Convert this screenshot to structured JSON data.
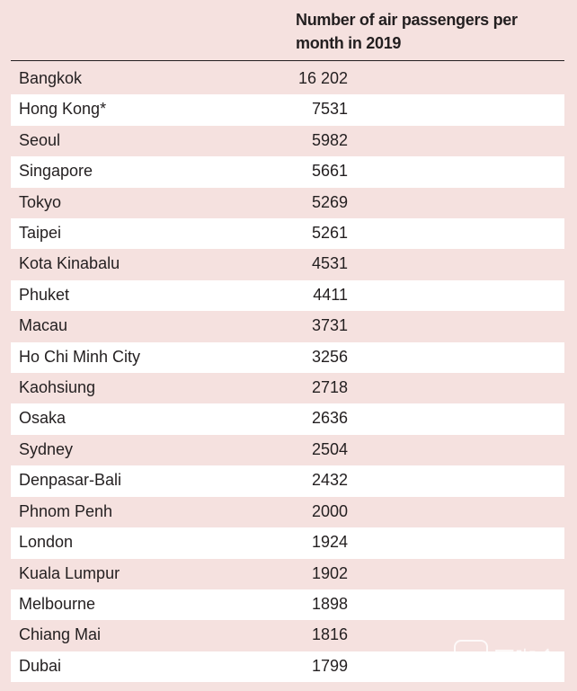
{
  "table": {
    "column_header": "Number of air passengers per month in 2019",
    "rows": [
      {
        "city": "Bangkok",
        "value": "16 202"
      },
      {
        "city": "Hong Kong*",
        "value": "7531"
      },
      {
        "city": "Seoul",
        "value": "5982"
      },
      {
        "city": "Singapore",
        "value": "5661"
      },
      {
        "city": "Tokyo",
        "value": "5269"
      },
      {
        "city": "Taipei",
        "value": "5261"
      },
      {
        "city": "Kota Kinabalu",
        "value": "4531"
      },
      {
        "city": "Phuket",
        "value": "4411"
      },
      {
        "city": "Macau",
        "value": "3731"
      },
      {
        "city": "Ho Chi Minh City",
        "value": "3256"
      },
      {
        "city": "Kaohsiung",
        "value": "2718"
      },
      {
        "city": "Osaka",
        "value": "2636"
      },
      {
        "city": "Sydney",
        "value": "2504"
      },
      {
        "city": "Denpasar-Bali",
        "value": "2432"
      },
      {
        "city": "Phnom Penh",
        "value": "2000"
      },
      {
        "city": "London",
        "value": "1924"
      },
      {
        "city": "Kuala Lumpur",
        "value": "1902"
      },
      {
        "city": "Melbourne",
        "value": "1898"
      },
      {
        "city": "Chiang Mai",
        "value": "1816"
      },
      {
        "city": "Dubai",
        "value": "1799"
      }
    ]
  },
  "watermark": {
    "text": "医咖会"
  },
  "colors": {
    "band": "#f5e1df",
    "alt_row": "#ffffff",
    "text": "#231f20"
  }
}
